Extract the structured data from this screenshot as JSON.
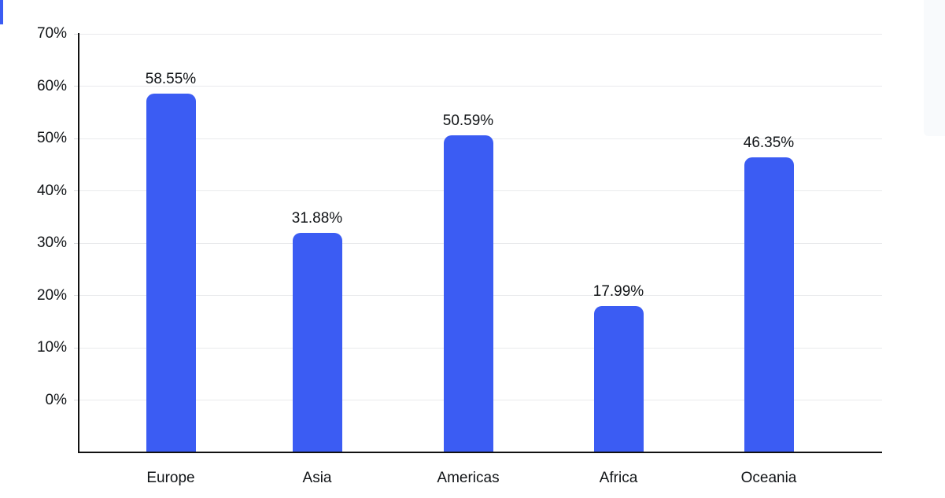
{
  "chart_data": {
    "type": "bar",
    "categories": [
      "Europe",
      "Asia",
      "Americas",
      "Africa",
      "Oceania"
    ],
    "values": [
      58.55,
      31.88,
      50.59,
      17.99,
      46.35
    ],
    "value_labels": [
      "58.55%",
      "31.88%",
      "50.59%",
      "17.99%",
      "46.35%"
    ],
    "title": "",
    "xlabel": "",
    "ylabel": "",
    "ylim": [
      -10,
      70
    ],
    "yticks": [
      0,
      10,
      20,
      30,
      40,
      50,
      60,
      70
    ],
    "ytick_labels": [
      "0%",
      "10%",
      "20%",
      "30%",
      "40%",
      "50%",
      "60%",
      "70%"
    ],
    "grid": true,
    "legend": false
  },
  "colors": {
    "bar": "#3B5CF3",
    "axis": "#111111",
    "grid": "#E9EAEC",
    "tick": "#D9DBDE",
    "text": "#111417",
    "left_accent": "#3B5CF3",
    "right_panel": "#F8FAFC",
    "background": "#FFFFFF"
  }
}
